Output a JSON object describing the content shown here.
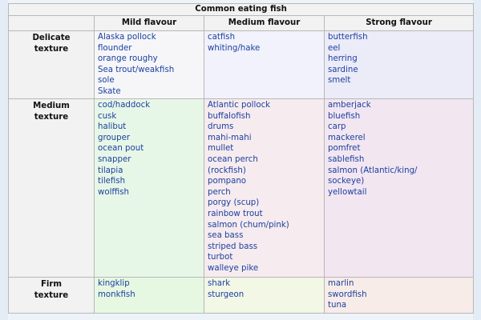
{
  "caption": "Common eating fish",
  "columns": [
    "Mild flavour",
    "Medium flavour",
    "Strong flavour"
  ],
  "rows": [
    {
      "texture": [
        "Delicate",
        "texture"
      ],
      "cells": [
        [
          "Alaska pollock",
          "flounder",
          "orange roughy",
          "Sea trout/weakfish",
          "sole",
          "Skate"
        ],
        [
          "catfish",
          "whiting/hake"
        ],
        [
          "butterfish",
          "eel",
          "herring",
          "sardine",
          "smelt"
        ]
      ]
    },
    {
      "texture": [
        "Medium",
        "texture"
      ],
      "cells": [
        [
          "cod/haddock",
          "cusk",
          "halibut",
          "grouper",
          "ocean pout",
          "snapper",
          "tilapia",
          "tilefish",
          "wolffish"
        ],
        [
          "Atlantic pollock",
          "buffalofish",
          "drums",
          "mahi-mahi",
          "mullet",
          "ocean perch",
          "(rockfish)",
          "pompano",
          "perch",
          "porgy (scup)",
          "rainbow trout",
          "salmon (chum/pink)",
          "sea bass",
          "striped bass",
          "turbot",
          "walleye pike"
        ],
        [
          "amberjack",
          "bluefish",
          "carp",
          "mackerel",
          "pomfret",
          "sablefish",
          "salmon (Atlantic/king/",
          "sockeye)",
          "yellowtail"
        ]
      ]
    },
    {
      "texture": [
        "Firm",
        "texture"
      ],
      "cells": [
        [
          "kingklip",
          "monkfish"
        ],
        [
          "shark",
          "sturgeon"
        ],
        [
          "marlin",
          "swordfish",
          "tuna"
        ]
      ]
    }
  ],
  "colors": {
    "delicate_mild": "#f6f6f9",
    "delicate_medium": "#f1f2fb",
    "delicate_strong": "#ecebf8",
    "medium_mild": "#e7f7e7",
    "medium_medium": "#f6ebee",
    "medium_strong": "#f2e6f1",
    "firm_mild": "#e6f8e2",
    "firm_medium": "#f2f7e6",
    "firm_strong": "#f8ece8",
    "link": "#1b3fa0"
  }
}
